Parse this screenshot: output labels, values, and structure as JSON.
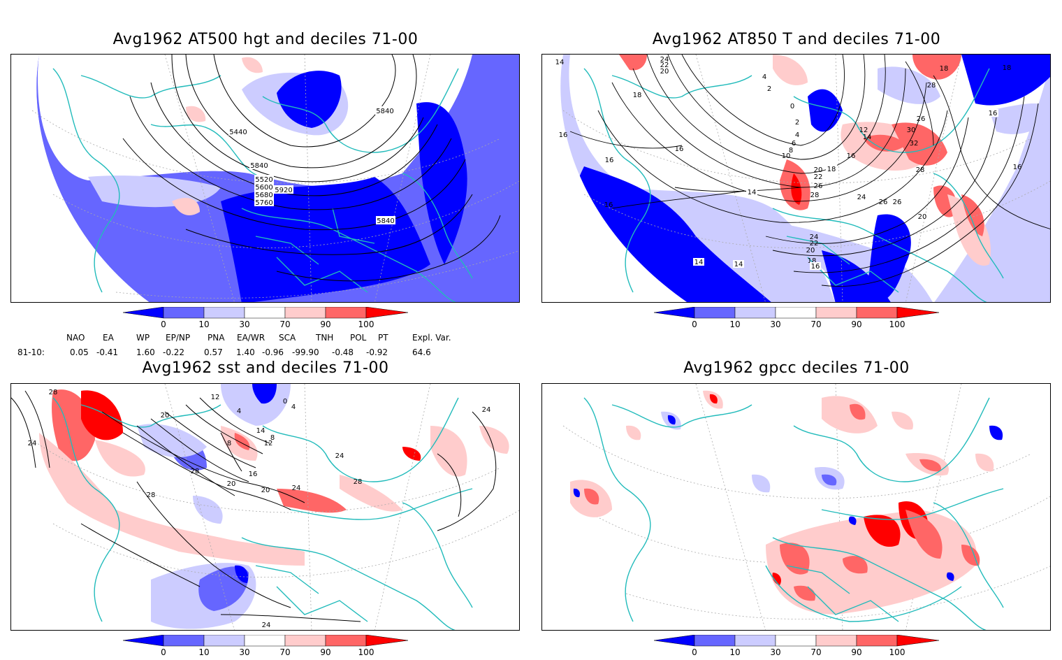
{
  "panels": [
    {
      "title": "Avg1962 AT500 hgt and deciles 71-00",
      "contour_labels": [
        "5440",
        "5520",
        "5600",
        "5680",
        "5760",
        "5840",
        "5840",
        "5920",
        "5840"
      ]
    },
    {
      "title": "Avg1962 AT850 T and deciles 71-00",
      "contour_labels": [
        "24",
        "22",
        "20",
        "18",
        "4",
        "2",
        "0",
        "2",
        "4",
        "6",
        "8",
        "10",
        "12",
        "14",
        "16",
        "18",
        "20",
        "22",
        "24",
        "26",
        "28",
        "26",
        "24",
        "22",
        "20",
        "18",
        "16",
        "14",
        "14",
        "14",
        "16",
        "16",
        "16",
        "16",
        "18",
        "28",
        "26",
        "30",
        "32",
        "28",
        "26",
        "20",
        "16",
        "18",
        "16",
        "14"
      ]
    },
    {
      "title": "Avg1962 sst and deciles 71-00",
      "contour_labels": [
        "28",
        "24",
        "20",
        "12",
        "4",
        "0",
        "4",
        "8",
        "12",
        "8",
        "14",
        "16",
        "20",
        "24",
        "28",
        "24",
        "20",
        "28",
        "28",
        "24",
        "24"
      ]
    },
    {
      "title": "Avg1962 gpcc deciles 71-00",
      "contour_labels": []
    }
  ],
  "colorbar": {
    "ticks": [
      "0",
      "10",
      "30",
      "70",
      "90",
      "100"
    ],
    "colors": [
      "#0000ff",
      "#6666ff",
      "#ccccff",
      "#ffffff",
      "#ffcccc",
      "#ff6666",
      "#ff0000"
    ]
  },
  "indices": {
    "headers": [
      "NAO",
      "EA",
      "WP",
      "EP/NP",
      "PNA",
      "EA/WR",
      "SCA",
      "TNH",
      "POL",
      "PT",
      "Expl. Var."
    ],
    "row_label": "81-10:",
    "values": [
      "0.05",
      "-0.41",
      "1.60",
      "-0.22",
      "0.57",
      "1.40",
      "-0.96",
      "-99.90",
      "-0.48",
      "-0.92",
      "64.6"
    ]
  },
  "colors": {
    "coast": "#22bbbb",
    "contour": "#000000"
  }
}
